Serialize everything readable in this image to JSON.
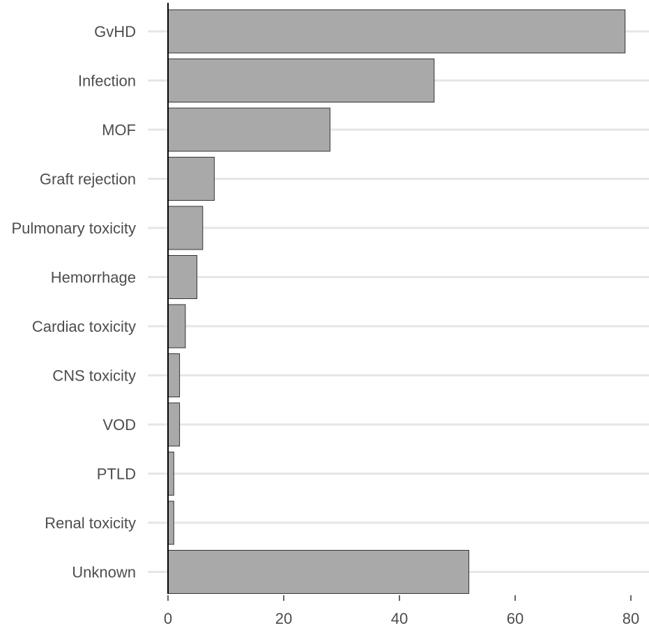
{
  "chart_data": {
    "type": "bar",
    "orientation": "horizontal",
    "categories": [
      "GvHD",
      "Infection",
      "MOF",
      "Graft rejection",
      "Pulmonary toxicity",
      "Hemorrhage",
      "Cardiac toxicity",
      "CNS toxicity",
      "VOD",
      "PTLD",
      "Renal toxicity",
      "Unknown"
    ],
    "values": [
      79,
      46,
      28,
      8,
      6,
      5,
      3,
      2,
      2,
      1,
      1,
      52
    ],
    "xlim": [
      0,
      82
    ],
    "xticks": [
      0,
      20,
      40,
      60,
      80
    ],
    "xtick_labels": [
      "0",
      "20",
      "40",
      "60",
      "80"
    ],
    "title": "",
    "xlabel": "",
    "ylabel": "",
    "grid": "horizontal at categories",
    "bar_color": "#a9a9a9",
    "bar_edge_color": "#333333",
    "grid_color": "#e6e6e6",
    "text_color": "#4d4d4d"
  }
}
